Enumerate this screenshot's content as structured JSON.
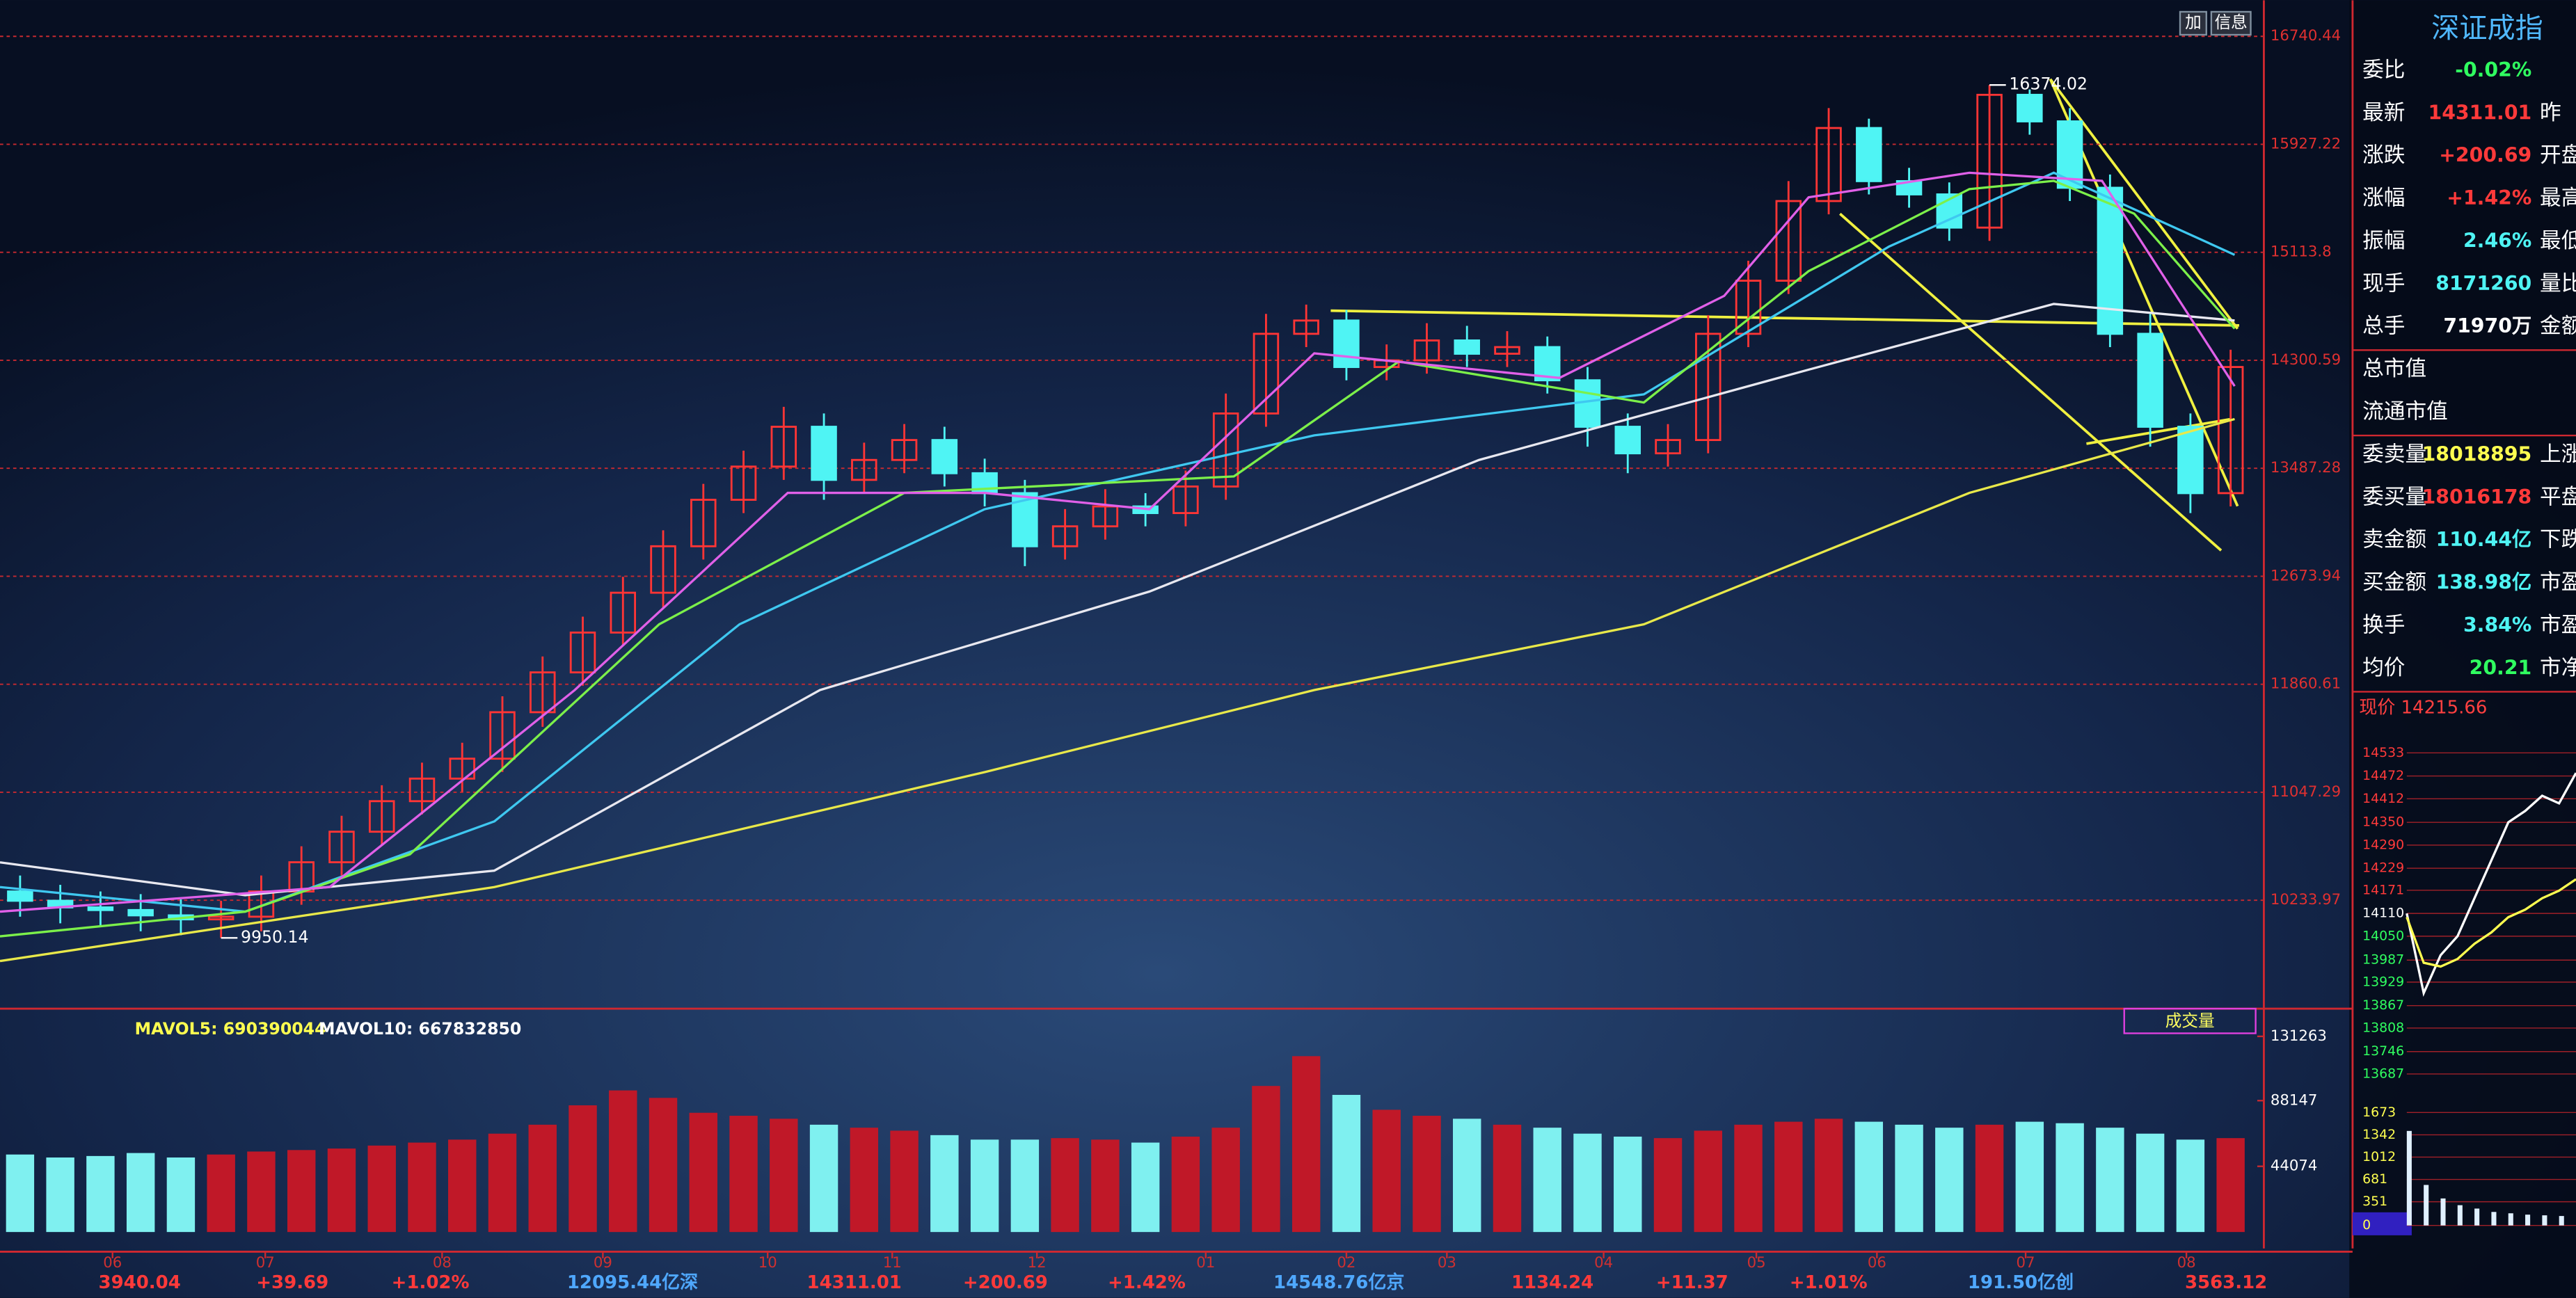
{
  "chart_data": [
    {
      "type": "candlestick",
      "xlim": [
        0,
        56
      ],
      "ylim": [
        9442,
        17012
      ],
      "xticks": [
        {
          "value": 2.8,
          "label": "06"
        },
        {
          "value": 6.6,
          "label": "07"
        },
        {
          "value": 11,
          "label": "08"
        },
        {
          "value": 15,
          "label": "09"
        },
        {
          "value": 19.1,
          "label": "10"
        },
        {
          "value": 22.2,
          "label": "11"
        },
        {
          "value": 25.8,
          "label": "12"
        },
        {
          "value": 30,
          "label": "01"
        },
        {
          "value": 33.5,
          "label": "02"
        },
        {
          "value": 36,
          "label": "03"
        },
        {
          "value": 39.9,
          "label": "04"
        },
        {
          "value": 43.7,
          "label": "05"
        },
        {
          "value": 46.7,
          "label": "06"
        },
        {
          "value": 50.4,
          "label": "07"
        },
        {
          "value": 54.4,
          "label": "08"
        }
      ],
      "yticks": [
        16740.44,
        15927.22,
        15113.8,
        14300.59,
        13487.28,
        12673.94,
        11860.61,
        11047.29,
        10233.97
      ],
      "grid": true,
      "up_color": "#ff3535",
      "down_color": "#4ff4f4",
      "open": [
        10300,
        10230,
        10180,
        10160,
        10120,
        10090,
        10110,
        10300,
        10520,
        10750,
        10980,
        11150,
        11300,
        11650,
        11950,
        12250,
        12550,
        12900,
        13250,
        13500,
        13800,
        13400,
        13550,
        13700,
        13450,
        13300,
        12900,
        13050,
        13200,
        13150,
        13350,
        13900,
        14500,
        14600,
        14250,
        14300,
        14450,
        14350,
        14400,
        14150,
        13800,
        13600,
        13700,
        14500,
        14900,
        15500,
        16050,
        15650,
        15550,
        15300,
        16300,
        16100,
        15600,
        14500,
        13800,
        13300
      ],
      "high": [
        10420,
        10350,
        10300,
        10280,
        10240,
        10230,
        10420,
        10640,
        10870,
        11100,
        11270,
        11420,
        11770,
        12070,
        12370,
        12670,
        13020,
        13370,
        13620,
        13950,
        13900,
        13680,
        13820,
        13800,
        13560,
        13400,
        13180,
        13330,
        13300,
        13470,
        14050,
        14650,
        14720,
        14680,
        14420,
        14580,
        14560,
        14520,
        14480,
        14250,
        13900,
        13820,
        14640,
        15050,
        15650,
        16200,
        16120,
        15750,
        15640,
        16374.02,
        16340,
        16200,
        15700,
        14650,
        13900,
        14380
      ],
      "low": [
        10110,
        10060,
        10040,
        10000,
        9970,
        9950.14,
        10000,
        10200,
        10420,
        10650,
        10880,
        11050,
        11200,
        11540,
        11850,
        12150,
        12440,
        12800,
        13150,
        13400,
        13250,
        13300,
        13450,
        13350,
        13200,
        12750,
        12800,
        12950,
        13050,
        13050,
        13250,
        13800,
        14400,
        14150,
        14150,
        14200,
        14250,
        14250,
        14050,
        13650,
        13450,
        13500,
        13600,
        14400,
        14800,
        15400,
        15550,
        15450,
        15200,
        15200,
        16000,
        15500,
        14400,
        13650,
        13150,
        13200
      ],
      "close": [
        10230,
        10180,
        10160,
        10120,
        10090,
        10110,
        10300,
        10520,
        10750,
        10980,
        11150,
        11300,
        11650,
        11950,
        12250,
        12550,
        12900,
        13250,
        13500,
        13800,
        13400,
        13550,
        13700,
        13450,
        13300,
        12900,
        13050,
        13200,
        13150,
        13350,
        13900,
        14500,
        14600,
        14250,
        14300,
        14450,
        14350,
        14400,
        14150,
        13800,
        13600,
        13700,
        14500,
        14900,
        15500,
        16050,
        15650,
        15550,
        15300,
        16300,
        16100,
        15600,
        14500,
        13800,
        13300,
        14250
      ],
      "series": [
        {
          "color": "#e8e84a",
          "x": [
            0,
            12.3,
            24.5,
            32.7,
            40.9,
            49,
            55.6
          ],
          "values": [
            9776,
            10333,
            11199,
            11817,
            12312,
            13302,
            13858
          ]
        },
        {
          "color": "#e8e8f0",
          "x": [
            0,
            6.1,
            12.3,
            20.4,
            28.6,
            36.8,
            45,
            51.1,
            55.6
          ],
          "values": [
            10519,
            10272,
            10457,
            11817,
            12559,
            13550,
            14230,
            14725,
            14600
          ]
        },
        {
          "color": "#3fc8f0",
          "x": [
            0,
            6.1,
            12.3,
            18.4,
            24.5,
            32.7,
            40.9,
            47,
            51.1,
            55.6
          ],
          "values": [
            10333,
            10148,
            10828,
            12312,
            13179,
            13735,
            14044,
            15157,
            15713,
            15095
          ]
        },
        {
          "color": "#7cf04a",
          "x": [
            0,
            6.1,
            10.2,
            16.4,
            22.5,
            30.7,
            34.8,
            40.9,
            45,
            49,
            51.1,
            53.1,
            55.6
          ],
          "values": [
            9962,
            10148,
            10580,
            12312,
            13302,
            13426,
            14291,
            13983,
            14972,
            15590,
            15652,
            15405,
            14539
          ]
        },
        {
          "color": "#e060e8",
          "x": [
            0,
            8.2,
            14.3,
            19.6,
            24.5,
            28.6,
            32.7,
            38.8,
            42.9,
            45,
            49,
            52.3,
            55.6
          ],
          "values": [
            10148,
            10333,
            11817,
            13302,
            13302,
            13179,
            14353,
            14168,
            14786,
            15528,
            15713,
            15652,
            14106
          ]
        }
      ],
      "annotations": [
        {
          "value": 16374.02,
          "label": "16374.02"
        },
        {
          "value": 9950.14,
          "label": "9950.14"
        }
      ]
    },
    {
      "type": "bar",
      "title": "成交量",
      "legend": [
        "MAVOL5: 690390044",
        "MAVOL10: 667832850"
      ],
      "ylim": [
        0,
        148750
      ],
      "yticks": [
        131263,
        88147,
        44074
      ],
      "values": [
        52000,
        50000,
        51000,
        53000,
        50000,
        52000,
        54000,
        55000,
        56000,
        58000,
        60000,
        62000,
        66000,
        72000,
        85000,
        95000,
        90000,
        80000,
        78000,
        76000,
        72000,
        70000,
        68000,
        65000,
        62000,
        62000,
        63000,
        62000,
        60000,
        64000,
        70000,
        98000,
        118000,
        92000,
        82000,
        78000,
        76000,
        72000,
        70000,
        66000,
        64000,
        63000,
        68000,
        72000,
        74000,
        76000,
        74000,
        72000,
        70000,
        72000,
        74000,
        73000,
        70000,
        66000,
        62000,
        63000
      ]
    },
    {
      "type": "line",
      "title": "现价 14215.66",
      "xlim": [
        0,
        10
      ],
      "ylim": [
        13660,
        14560
      ],
      "yticks": [
        14533,
        14472,
        14412,
        14350,
        14290,
        14229,
        14171,
        14110,
        14050,
        13987,
        13929,
        13867,
        13808,
        13746,
        13687
      ],
      "x": [
        0,
        1,
        2,
        3,
        4,
        5,
        6,
        7,
        8,
        9,
        10
      ],
      "series": [
        {
          "color": "#ffffff",
          "values": [
            14110,
            13900,
            14000,
            14050,
            14150,
            14250,
            14350,
            14380,
            14420,
            14400,
            14480
          ]
        },
        {
          "color": "#ffff50",
          "values": [
            14100,
            13980,
            13970,
            13990,
            14030,
            14060,
            14100,
            14120,
            14150,
            14170,
            14200
          ]
        }
      ],
      "volume_ylim": [
        0,
        1800
      ],
      "volume_ticks": [
        1673,
        1342,
        1012,
        681,
        351,
        0
      ],
      "volume": [
        1400,
        600,
        400,
        300,
        250,
        200,
        180,
        160,
        150,
        140,
        150
      ]
    }
  ],
  "toolbar": [
    "加",
    "信息"
  ],
  "sidebar": {
    "title": "深证成指",
    "rows": [
      {
        "label": "委比",
        "value": "-0.02%",
        "color": "#30ff60"
      },
      {
        "label": "最新",
        "value": "14311.01",
        "color": "#ff3a3a",
        "side": "昨"
      },
      {
        "label": "涨跌",
        "value": "+200.69",
        "color": "#ff3a3a",
        "side": "开盘"
      },
      {
        "label": "涨幅",
        "value": "+1.42%",
        "color": "#ff3a3a",
        "side": "最高"
      },
      {
        "label": "振幅",
        "value": "2.46%",
        "color": "#4ff4f4",
        "side": "最低"
      },
      {
        "label": "现手",
        "value": "8171260",
        "color": "#4ff4f4",
        "side": "量比"
      },
      {
        "label": "总手",
        "value": "71970万",
        "color": "#ffffff",
        "side": "金额"
      },
      {
        "label": "总市值"
      },
      {
        "label": "流通市值"
      },
      {
        "label": "委卖量",
        "value": "18018895",
        "color": "#ffff50",
        "side": "上涨"
      },
      {
        "label": "委买量",
        "value": "18016178",
        "color": "#ff3a3a",
        "side": "平盘"
      },
      {
        "label": "卖金额",
        "value": "110.44亿",
        "color": "#4ff4f4",
        "side": "下跌"
      },
      {
        "label": "买金额",
        "value": "138.98亿",
        "color": "#4ff4f4",
        "side": "市盈"
      },
      {
        "label": "换手",
        "value": "3.84%",
        "color": "#4ff4f4",
        "side": "市盈"
      },
      {
        "label": "均价",
        "value": "20.21",
        "color": "#30ff60",
        "side": "市净"
      }
    ]
  },
  "status_bar": [
    {
      "text": "3940.04",
      "color": "#ff3a3a"
    },
    {
      "text": "+39.69",
      "color": "#ff3a3a"
    },
    {
      "text": "+1.02%",
      "color": "#ff3a3a"
    },
    {
      "text": "12095.44亿深",
      "color": "#4fa8ff"
    },
    {
      "text": "14311.01",
      "color": "#ff3a3a"
    },
    {
      "text": "+200.69",
      "color": "#ff3a3a"
    },
    {
      "text": "+1.42%",
      "color": "#ff3a3a"
    },
    {
      "text": "14548.76亿京",
      "color": "#4fa8ff"
    },
    {
      "text": "1134.24",
      "color": "#ff3a3a"
    },
    {
      "text": "+11.37",
      "color": "#ff3a3a"
    },
    {
      "text": "+1.01%",
      "color": "#ff3a3a"
    },
    {
      "text": "191.50亿创",
      "color": "#4fa8ff"
    },
    {
      "text": "3563.12",
      "color": "#ff3a3a"
    }
  ]
}
